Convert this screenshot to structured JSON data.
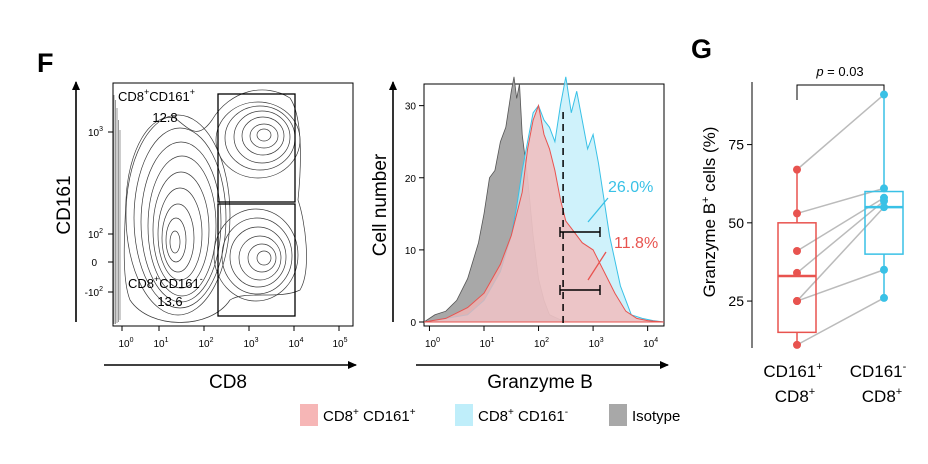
{
  "panel_labels": {
    "flow": "F",
    "summary": "G"
  },
  "colors": {
    "cd161pos": "#e8534f",
    "cd161pos_fill": "#f6b6b6",
    "cd161neg": "#39c1e6",
    "cd161neg_fill": "#bfeefa",
    "isotype_fill": "#a8a8a8",
    "line": "#bbbbbb"
  },
  "chart_data": [
    {
      "type": "contour",
      "xlabel": "CD8",
      "ylabel": "CD161",
      "x_ticks": [
        {
          "base": "10",
          "exp": "0"
        },
        {
          "base": "10",
          "exp": "1"
        },
        {
          "base": "10",
          "exp": "2"
        },
        {
          "base": "10",
          "exp": "3"
        },
        {
          "base": "10",
          "exp": "4"
        },
        {
          "base": "10",
          "exp": "5"
        }
      ],
      "y_ticks": [
        {
          "base": "10",
          "exp": "3"
        },
        {
          "base": "10",
          "exp": "2"
        },
        {
          "base": "0",
          "exp": ""
        },
        {
          "base": "-10",
          "exp": "2"
        }
      ],
      "gates": [
        {
          "label_main": "CD8",
          "label_sup1": "+",
          "label_mid": "CD161",
          "label_sup2": "+",
          "value": "12.8"
        },
        {
          "label_main": "CD8",
          "label_sup1": "+",
          "label_mid": "CD161",
          "label_sup2": "-",
          "value": "13.6"
        }
      ]
    },
    {
      "type": "histogram",
      "xlabel": "Granzyme B",
      "ylabel": "Cell number",
      "xscale": "log",
      "xlim_log": [
        -0.1,
        4.3
      ],
      "ylim": [
        0,
        33
      ],
      "y_ticks": [
        0,
        10,
        20,
        30
      ],
      "x_ticks": [
        {
          "base": "10",
          "exp": "0"
        },
        {
          "base": "10",
          "exp": "1"
        },
        {
          "base": "10",
          "exp": "2"
        },
        {
          "base": "10",
          "exp": "3"
        },
        {
          "base": "10",
          "exp": "4"
        }
      ],
      "threshold_log": 2.45,
      "annotations": [
        {
          "text": "26.0%",
          "series": "CD8+ CD161-"
        },
        {
          "text": "11.8%",
          "series": "CD8+ CD161+"
        }
      ],
      "legend": [
        {
          "main": "CD8",
          "sup": "+",
          "tail": " CD161",
          "sup2": "+",
          "key": "cd161pos"
        },
        {
          "main": "CD8",
          "sup": "+",
          "tail": " CD161",
          "sup2": "-",
          "key": "cd161neg"
        },
        {
          "main": "Isotype",
          "sup": "",
          "tail": "",
          "sup2": "",
          "key": "isotype"
        }
      ],
      "series": [
        {
          "name": "Isotype",
          "key": "isotype",
          "x_log": [
            -0.1,
            0.1,
            0.3,
            0.5,
            0.7,
            0.9,
            1.0,
            1.1,
            1.2,
            1.3,
            1.4,
            1.5,
            1.55,
            1.6,
            1.65,
            1.7,
            1.8,
            1.9,
            2.0,
            2.1,
            2.2,
            2.4,
            2.6
          ],
          "y": [
            0,
            1,
            1.5,
            3,
            6,
            11,
            15,
            20,
            21,
            25,
            27,
            32,
            34,
            31,
            33,
            26,
            20,
            12,
            6,
            3,
            1,
            0.3,
            0
          ]
        },
        {
          "name": "CD8+ CD161-",
          "key": "cd161neg",
          "x_log": [
            -0.1,
            0.3,
            0.7,
            1.0,
            1.3,
            1.5,
            1.6,
            1.7,
            1.8,
            1.9,
            2.0,
            2.1,
            2.2,
            2.3,
            2.4,
            2.5,
            2.6,
            2.7,
            2.8,
            2.9,
            3.0,
            3.1,
            3.2,
            3.3,
            3.5,
            3.7,
            3.9,
            4.1,
            4.3
          ],
          "y": [
            0,
            0.5,
            1,
            3,
            7,
            12,
            16,
            21,
            25,
            29,
            30,
            28,
            27,
            25,
            30,
            34,
            29,
            32,
            28,
            24,
            26,
            22,
            17,
            12,
            5,
            1,
            0.5,
            0.2,
            0
          ]
        },
        {
          "name": "CD8+ CD161+",
          "key": "cd161pos",
          "x_log": [
            -0.1,
            0.3,
            0.7,
            1.0,
            1.3,
            1.5,
            1.7,
            1.8,
            1.9,
            2.0,
            2.1,
            2.2,
            2.3,
            2.4,
            2.5,
            2.6,
            2.8,
            3.0,
            3.2,
            3.4,
            3.6,
            3.8,
            4.0,
            4.3
          ],
          "y": [
            0,
            0.5,
            2,
            4,
            8,
            12,
            18,
            24,
            28,
            30,
            26,
            24,
            21,
            17,
            14,
            13,
            11,
            10,
            7,
            4,
            1.5,
            0.5,
            0.2,
            0
          ]
        }
      ]
    },
    {
      "type": "box",
      "title": "",
      "ylabel_main": "Granzyme B",
      "ylabel_sup": "+",
      "ylabel_tail": " cells (%)",
      "ylim": [
        10,
        95
      ],
      "y_ticks": [
        25,
        50,
        75
      ],
      "p_value_label": "p",
      "p_value_text": " = 0.03",
      "categories": [
        {
          "line1": "CD161",
          "sup1": "+",
          "line2": "CD8",
          "sup2": "+",
          "key": "cd161pos"
        },
        {
          "line1": "CD161",
          "sup1": "-",
          "line2": "CD8",
          "sup2": "+",
          "key": "cd161neg"
        }
      ],
      "boxes": [
        {
          "key": "cd161pos",
          "q1": 15,
          "median": 33,
          "q3": 50,
          "whisker_low": 11,
          "whisker_high": 67
        },
        {
          "key": "cd161neg",
          "q1": 40,
          "median": 55,
          "q3": 60,
          "whisker_low": 26,
          "whisker_high": 91
        }
      ],
      "pairs": [
        [
          67,
          91
        ],
        [
          53,
          61
        ],
        [
          41,
          58
        ],
        [
          34,
          57
        ],
        [
          25,
          55
        ],
        [
          25,
          35
        ],
        [
          11,
          26
        ]
      ]
    }
  ]
}
